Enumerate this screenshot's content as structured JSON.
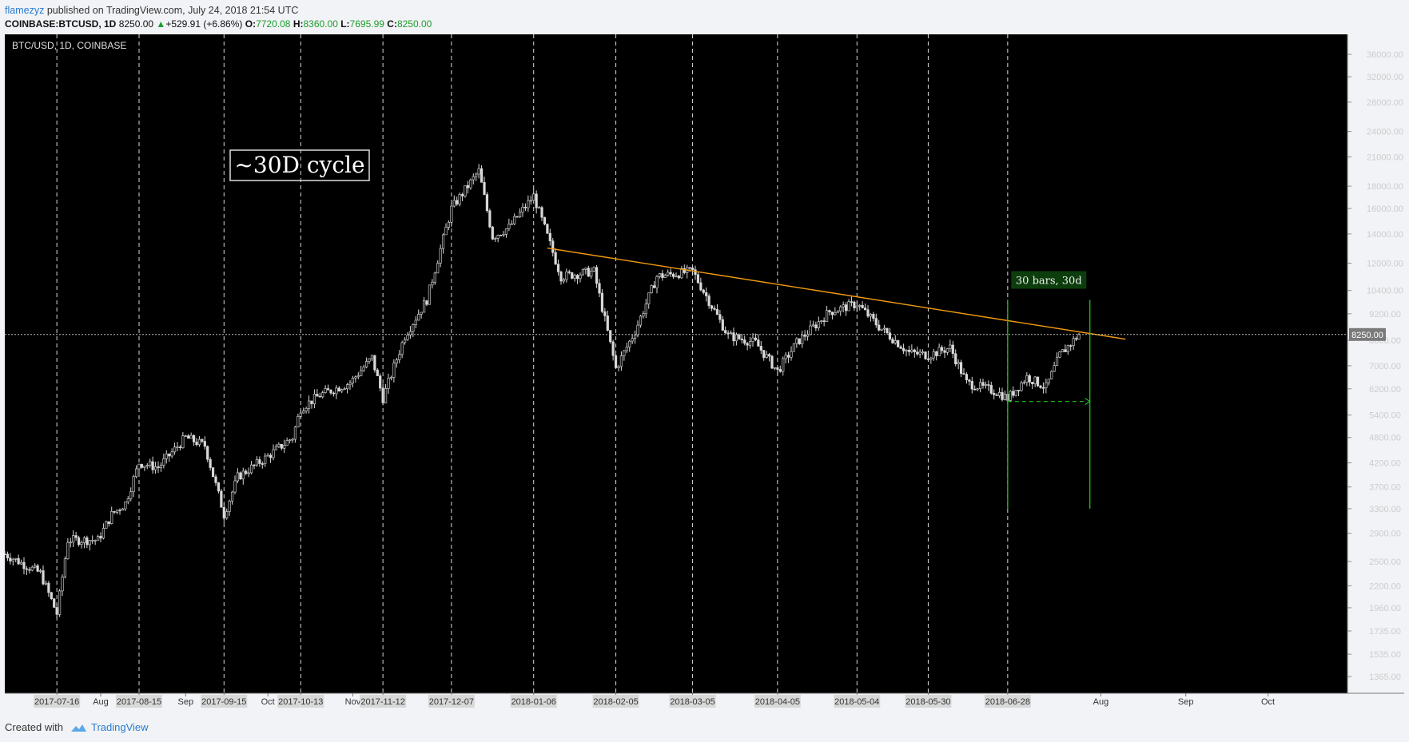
{
  "header": {
    "author": "flamezyz",
    "published_text": "published on TradingView.com, July 24, 2018 21:54 UTC"
  },
  "quote": {
    "symbol": "COINBASE:BTCUSD, 1D",
    "last": "8250.00",
    "change": "+529.91 (+6.86%)",
    "o_label": "O:",
    "o": "7720.08",
    "h_label": "H:",
    "h": "8360.00",
    "l_label": "L:",
    "l": "7695.99",
    "c_label": "C:",
    "c": "8250.00"
  },
  "colors": {
    "background": "#000000",
    "candle": "#d9d9d9",
    "trendline": "#f39c12",
    "measure": "#22c022",
    "up": "#1e9c2c",
    "link": "#2a7cd0"
  },
  "chart_data": {
    "type": "candlestick",
    "title": "BTC/USD, 1D, COINBASE",
    "annotation": "~30D cycle",
    "measure_label": "30 bars, 30d",
    "price_label": "8250.00",
    "y_scale": "log",
    "ylim": [
      1250,
      40000
    ],
    "y_ticks": [
      "36000.00",
      "32000.00",
      "28000.00",
      "24000.00",
      "21000.00",
      "18000.00",
      "16000.00",
      "14000.00",
      "12000.00",
      "10400.00",
      "9200.00",
      "8000.00",
      "7000.00",
      "6200.00",
      "5400.00",
      "4800.00",
      "4200.00",
      "3700.00",
      "3300.00",
      "2900.00",
      "2500.00",
      "2200.00",
      "1960.00",
      "1735.00",
      "1535.00",
      "1365.00"
    ],
    "x_range": [
      "2017-06-27",
      "2018-10-30"
    ],
    "x_ticks": [
      {
        "date": "2017-07-16",
        "label": "2017-07-16",
        "boxed": true
      },
      {
        "date": "2017-08-01",
        "label": "Aug",
        "boxed": false
      },
      {
        "date": "2017-08-15",
        "label": "2017-08-15",
        "boxed": true
      },
      {
        "date": "2017-09-01",
        "label": "Sep",
        "boxed": false
      },
      {
        "date": "2017-09-15",
        "label": "2017-09-15",
        "boxed": true
      },
      {
        "date": "2017-10-01",
        "label": "Oct",
        "boxed": false
      },
      {
        "date": "2017-10-13",
        "label": "2017-10-13",
        "boxed": true
      },
      {
        "date": "2017-11-01",
        "label": "Nov",
        "boxed": false
      },
      {
        "date": "2017-11-12",
        "label": "2017-11-12",
        "boxed": true
      },
      {
        "date": "2017-12-07",
        "label": "2017-12-07",
        "boxed": true
      },
      {
        "date": "2018-01-06",
        "label": "2018-01-06",
        "boxed": true
      },
      {
        "date": "2018-02-05",
        "label": "2018-02-05",
        "boxed": true
      },
      {
        "date": "2018-03-05",
        "label": "2018-03-05",
        "boxed": true
      },
      {
        "date": "2018-04-05",
        "label": "2018-04-05",
        "boxed": true
      },
      {
        "date": "2018-05-04",
        "label": "2018-05-04",
        "boxed": true
      },
      {
        "date": "2018-05-30",
        "label": "2018-05-30",
        "boxed": true
      },
      {
        "date": "2018-06-28",
        "label": "2018-06-28",
        "boxed": true
      },
      {
        "date": "2018-08-01",
        "label": "Aug",
        "boxed": false
      },
      {
        "date": "2018-09-01",
        "label": "Sep",
        "boxed": false
      },
      {
        "date": "2018-10-01",
        "label": "Oct",
        "boxed": false
      }
    ],
    "cycle_dates": [
      "2017-07-16",
      "2017-08-15",
      "2017-09-15",
      "2017-10-13",
      "2017-11-12",
      "2017-12-07",
      "2018-01-06",
      "2018-02-05",
      "2018-03-05",
      "2018-04-05",
      "2018-05-04",
      "2018-05-30",
      "2018-06-28"
    ],
    "price_path": [
      [
        "2017-06-27",
        2600
      ],
      [
        "2017-07-10",
        2350
      ],
      [
        "2017-07-16",
        1900
      ],
      [
        "2017-07-20",
        2800
      ],
      [
        "2017-07-31",
        2800
      ],
      [
        "2017-08-05",
        3200
      ],
      [
        "2017-08-10",
        3400
      ],
      [
        "2017-08-15",
        4200
      ],
      [
        "2017-08-22",
        4100
      ],
      [
        "2017-09-01",
        4800
      ],
      [
        "2017-09-08",
        4600
      ],
      [
        "2017-09-15",
        3200
      ],
      [
        "2017-09-20",
        3900
      ],
      [
        "2017-09-30",
        4300
      ],
      [
        "2017-10-10",
        4800
      ],
      [
        "2017-10-13",
        5600
      ],
      [
        "2017-10-20",
        6000
      ],
      [
        "2017-10-31",
        6400
      ],
      [
        "2017-11-08",
        7300
      ],
      [
        "2017-11-12",
        5900
      ],
      [
        "2017-11-20",
        8200
      ],
      [
        "2017-11-28",
        9900
      ],
      [
        "2017-12-07",
        16000
      ],
      [
        "2017-12-17",
        19500
      ],
      [
        "2017-12-22",
        13800
      ],
      [
        "2017-12-28",
        14500
      ],
      [
        "2018-01-06",
        17100
      ],
      [
        "2018-01-16",
        11200
      ],
      [
        "2018-01-28",
        11500
      ],
      [
        "2018-02-05",
        6900
      ],
      [
        "2018-02-12",
        8400
      ],
      [
        "2018-02-20",
        11200
      ],
      [
        "2018-03-05",
        11500
      ],
      [
        "2018-03-18",
        8200
      ],
      [
        "2018-03-28",
        7900
      ],
      [
        "2018-04-05",
        6800
      ],
      [
        "2018-04-12",
        7900
      ],
      [
        "2018-04-24",
        9300
      ],
      [
        "2018-05-04",
        9700
      ],
      [
        "2018-05-12",
        8600
      ],
      [
        "2018-05-23",
        7500
      ],
      [
        "2018-05-30",
        7400
      ],
      [
        "2018-06-07",
        7700
      ],
      [
        "2018-06-13",
        6400
      ],
      [
        "2018-06-24",
        6100
      ],
      [
        "2018-06-28",
        5900
      ],
      [
        "2018-07-05",
        6600
      ],
      [
        "2018-07-12",
        6250
      ],
      [
        "2018-07-17",
        7400
      ],
      [
        "2018-07-24",
        8250
      ]
    ],
    "trendline": [
      [
        "2018-01-11",
        13000
      ],
      [
        "2018-08-10",
        8050
      ]
    ],
    "measure": {
      "start": "2018-06-28",
      "end": "2018-07-28",
      "line_low": 3300,
      "line_high": 9900,
      "arrow_price": 5800,
      "label_price": 10900
    }
  }
}
